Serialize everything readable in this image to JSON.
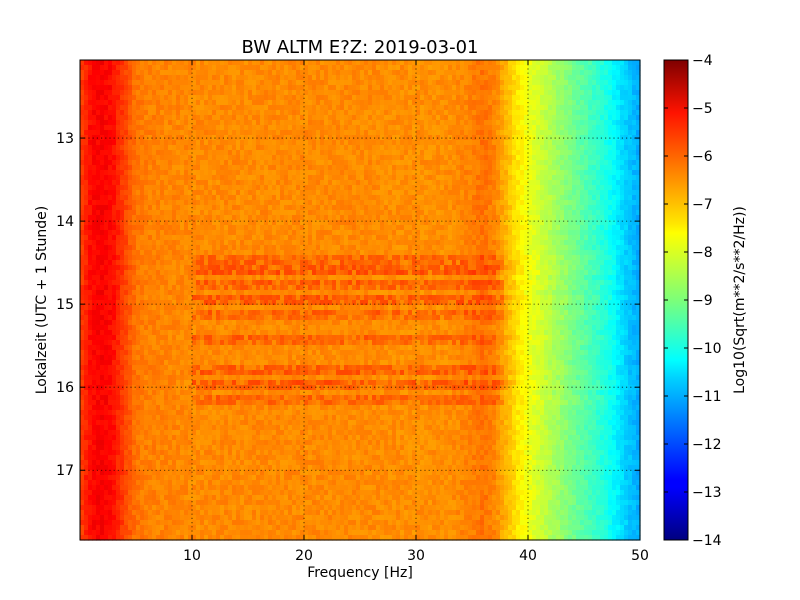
{
  "chart_data": {
    "type": "heatmap",
    "title": "BW ALTM E?Z: 2019-03-01",
    "xlabel": "Frequency [Hz]",
    "ylabel": "Lokalzeit (UTC + 1 Stunde)",
    "xlim": [
      0,
      50
    ],
    "ylim": [
      17.84,
      12.06
    ],
    "x_ticks": [
      10,
      20,
      30,
      40,
      50
    ],
    "y_ticks": [
      13,
      14,
      15,
      16,
      17
    ],
    "grid": true,
    "colormap": "jet",
    "colorbar": {
      "label": "Log10(Sqrt(m**2/s**2/Hz))",
      "range": [
        -14,
        -4
      ],
      "ticks": [
        -4,
        -5,
        -6,
        -7,
        -8,
        -9,
        -10,
        -11,
        -12,
        -13,
        -14
      ]
    },
    "spectrum_profile": {
      "frequency_hz": [
        0,
        1,
        2,
        3,
        4,
        5,
        6,
        8,
        10,
        15,
        20,
        25,
        30,
        33,
        35,
        36,
        37,
        38,
        39,
        40,
        41,
        42,
        43,
        44,
        45,
        46,
        47,
        48,
        49,
        50
      ],
      "log10_amplitude": [
        -5.9,
        -5.3,
        -5.2,
        -5.4,
        -5.9,
        -6.4,
        -6.5,
        -6.55,
        -6.6,
        -6.6,
        -6.6,
        -6.6,
        -6.65,
        -6.65,
        -6.5,
        -6.35,
        -6.55,
        -7.0,
        -7.5,
        -7.9,
        -8.2,
        -8.5,
        -8.8,
        -9.1,
        -9.4,
        -9.7,
        -10.0,
        -10.4,
        -10.8,
        -11.1
      ]
    },
    "high_energy_times_h": [
      14.45,
      14.58,
      14.75,
      14.95,
      15.15,
      15.45,
      15.8,
      15.95,
      16.15
    ],
    "colors": {
      "axis": "#000000",
      "background": "#ffffff"
    }
  }
}
